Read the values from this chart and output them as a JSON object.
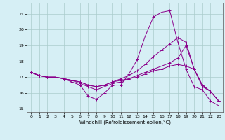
{
  "bg_color": "#d6eff5",
  "line_color": "#8b008b",
  "grid_color": "#aacccc",
  "xlabel": "Windchill (Refroidissement éolien,°C)",
  "xlim": [
    -0.5,
    23.5
  ],
  "ylim": [
    14.8,
    21.7
  ],
  "yticks": [
    15,
    16,
    17,
    18,
    19,
    20,
    21
  ],
  "xticks": [
    0,
    1,
    2,
    3,
    4,
    5,
    6,
    7,
    8,
    9,
    10,
    11,
    12,
    13,
    14,
    15,
    16,
    17,
    18,
    19,
    20,
    21,
    22,
    23
  ],
  "series": [
    [
      17.3,
      17.1,
      17.0,
      17.0,
      16.9,
      16.7,
      16.5,
      15.8,
      15.6,
      16.0,
      16.5,
      16.5,
      17.2,
      18.1,
      19.6,
      20.8,
      21.1,
      21.2,
      19.2,
      17.5,
      16.4,
      16.2,
      15.5,
      15.2
    ],
    [
      17.3,
      17.1,
      17.0,
      17.0,
      16.9,
      16.8,
      16.6,
      16.4,
      16.2,
      16.4,
      16.6,
      16.7,
      16.9,
      17.1,
      17.3,
      17.5,
      17.7,
      17.9,
      18.2,
      19.0,
      17.5,
      16.5,
      16.1,
      15.5
    ],
    [
      17.3,
      17.1,
      17.0,
      17.0,
      16.9,
      16.8,
      16.7,
      16.5,
      16.4,
      16.5,
      16.7,
      16.8,
      16.9,
      17.0,
      17.2,
      17.4,
      17.5,
      17.7,
      17.8,
      17.7,
      17.5,
      16.4,
      16.1,
      15.5
    ],
    [
      17.3,
      17.1,
      17.0,
      17.0,
      16.9,
      16.8,
      16.7,
      16.5,
      16.4,
      16.5,
      16.7,
      16.9,
      17.1,
      17.4,
      17.8,
      18.3,
      18.7,
      19.1,
      19.5,
      19.2,
      17.5,
      16.5,
      16.1,
      15.5
    ]
  ]
}
